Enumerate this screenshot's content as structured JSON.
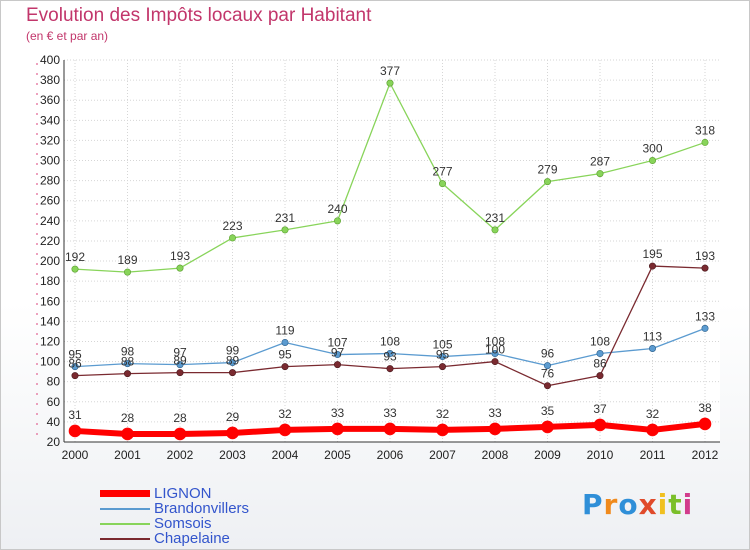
{
  "header": {
    "title": "Evolution des Impôts locaux par Habitant",
    "subtitle": "(en € et par an)"
  },
  "logo": {
    "text": "Proxiti",
    "colors": [
      "#2f8fd8",
      "#f08a1c",
      "#2f8fd8",
      "#e04a2a",
      "#f0c020",
      "#7bbf2a",
      "#d23c8c"
    ]
  },
  "chart_data": {
    "type": "line",
    "title": "Evolution des Impôts locaux par Habitant",
    "subtitle": "(en € et par an)",
    "xlabel": "",
    "ylabel": "",
    "ylim": [
      20,
      400
    ],
    "yticks": [
      20,
      40,
      60,
      80,
      100,
      120,
      140,
      160,
      180,
      200,
      220,
      240,
      260,
      280,
      300,
      320,
      340,
      360,
      380,
      400
    ],
    "categories": [
      "2000",
      "2001",
      "2002",
      "2003",
      "2004",
      "2005",
      "2006",
      "2007",
      "2008",
      "2009",
      "2010",
      "2011",
      "2012"
    ],
    "grid": true,
    "legend_position": "bottom-left",
    "series": [
      {
        "name": "Somsois",
        "color": "#88d45a",
        "values": [
          192,
          189,
          193,
          223,
          231,
          240,
          377,
          277,
          231,
          279,
          287,
          300,
          318
        ]
      },
      {
        "name": "Brandonvillers",
        "color": "#5b9bd0",
        "values": [
          95,
          98,
          97,
          99,
          119,
          107,
          108,
          105,
          108,
          96,
          108,
          113,
          133
        ]
      },
      {
        "name": "Chapelaine",
        "color": "#7a2a30",
        "values": [
          86,
          88,
          89,
          89,
          95,
          97,
          93,
          95,
          100,
          76,
          86,
          195,
          193
        ]
      },
      {
        "name": "LIGNON",
        "color": "#ff0000",
        "values": [
          31,
          28,
          28,
          29,
          32,
          33,
          33,
          32,
          33,
          35,
          37,
          32,
          38
        ]
      }
    ],
    "legend_order": [
      "LIGNON",
      "Brandonvillers",
      "Somsois",
      "Chapelaine"
    ]
  }
}
